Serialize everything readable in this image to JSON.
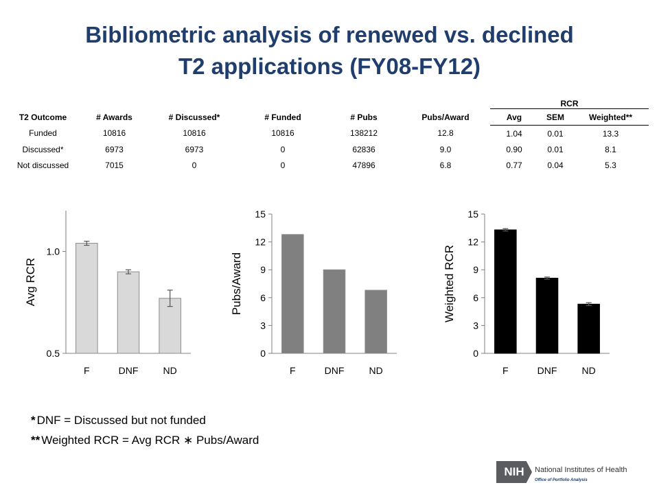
{
  "title": {
    "line1": "Bibliometric  analysis  of renewed vs. declined",
    "line2": "T2 applications  (FY08-FY12)"
  },
  "table": {
    "group_header": "RCR",
    "columns": [
      "T2 Outcome",
      "# Awards",
      "# Discussed*",
      "# Funded",
      "# Pubs",
      "Pubs/Award",
      "Avg",
      "SEM",
      "Weighted**"
    ],
    "rows": [
      [
        "Funded",
        "10816",
        "10816",
        "10816",
        "138212",
        "12.8",
        "1.04",
        "0.01",
        "13.3"
      ],
      [
        "Discussed*",
        "6973",
        "6973",
        "0",
        "62836",
        "9.0",
        "0.90",
        "0.01",
        "8.1"
      ],
      [
        "Not discussed",
        "7015",
        "0",
        "0",
        "47896",
        "6.8",
        "0.77",
        "0.04",
        "5.3"
      ]
    ]
  },
  "chart_data": [
    {
      "type": "bar",
      "categories": [
        "F",
        "DNF",
        "ND"
      ],
      "values": [
        1.04,
        0.9,
        0.77
      ],
      "errors": [
        0.01,
        0.01,
        0.04
      ],
      "ylabel": "Avg RCR",
      "ylim": [
        0.5,
        1.2
      ],
      "yticks": [
        0.5,
        1.0
      ],
      "ytick_labels": [
        "0.5",
        "1.0"
      ],
      "color": "#d9d9d9"
    },
    {
      "type": "bar",
      "categories": [
        "F",
        "DNF",
        "ND"
      ],
      "values": [
        12.8,
        9.0,
        6.8
      ],
      "ylabel": "Pubs/Award",
      "ylim": [
        0,
        15
      ],
      "yticks": [
        0,
        3,
        6,
        9,
        12,
        15
      ],
      "ytick_labels": [
        "0",
        "3",
        "6",
        "9",
        "12",
        "15"
      ],
      "color": "#808080"
    },
    {
      "type": "bar",
      "categories": [
        "F",
        "DNF",
        "ND"
      ],
      "values": [
        13.3,
        8.1,
        5.3
      ],
      "errors": [
        0.13,
        0.12,
        0.16
      ],
      "ylabel": "Weighted RCR",
      "ylim": [
        0,
        15
      ],
      "yticks": [
        0,
        3,
        6,
        9,
        12,
        15
      ],
      "ytick_labels": [
        "0",
        "3",
        "6",
        "9",
        "12",
        "15"
      ],
      "color": "#000000"
    }
  ],
  "notes": [
    {
      "mark": "*",
      "text": "DNF = Discussed but not funded"
    },
    {
      "mark": "**",
      "text": "Weighted RCR = Avg  RCR ∗ Pubs/Award"
    }
  ],
  "logo": {
    "mark": "NIH",
    "name": "National Institutes of Health",
    "office": "Office of Portfolio Analysis"
  }
}
